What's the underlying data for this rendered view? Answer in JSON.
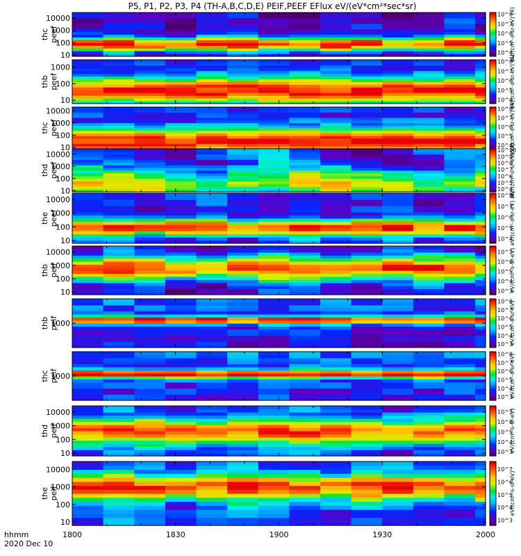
{
  "chart_data": {
    "type": "heatmap",
    "title": "P5, P1, P2, P3, P4 (TH-A,B,C,D,E) PEIF,PEEF EFlux eV/(eV*cm²*sec*sr)",
    "x_axis": {
      "label": "hhmm",
      "sublabel": "2020 Dec 10",
      "ticks": [
        "1800",
        "1830",
        "1900",
        "1930",
        "2000"
      ],
      "tick_values_min": [
        0,
        30,
        60,
        90,
        120
      ],
      "range_min": [
        0,
        120
      ]
    },
    "panels": [
      {
        "ylabel": [
          "thc",
          "peef"
        ],
        "yticks": [
          "10",
          "100",
          "1000",
          "10000"
        ],
        "ytick_exp": [
          1,
          2,
          3,
          4
        ],
        "yrange_exp": [
          0.9,
          4.45
        ],
        "cbar_ticks": [
          "10^4",
          "10^5",
          "10^6",
          "10^7",
          "10^8"
        ],
        "cbar_exp_range": [
          3.6,
          8.2
        ],
        "cbar_label": "eV/(cm²-s-sr-eV) (4)"
      },
      {
        "ylabel": [
          "thb",
          "peef"
        ],
        "yticks": [
          "10",
          "100",
          "1000"
        ],
        "ytick_exp": [
          1,
          2,
          3
        ],
        "yrange_exp": [
          0.8,
          3.45
        ],
        "cbar_ticks": [
          "10^4",
          "10^5",
          "10^6",
          "10^7",
          "10^8"
        ],
        "cbar_exp_range": [
          3.6,
          8.2
        ],
        "cbar_label": "eV/(cm²-s-sr-eV) (4)"
      },
      {
        "ylabel": [
          "thc",
          "peef"
        ],
        "yticks": [
          "10",
          "100",
          "1000",
          "10000"
        ],
        "ytick_exp": [
          1,
          2,
          3,
          4
        ],
        "yrange_exp": [
          0.9,
          4.3
        ],
        "cbar_ticks": [
          "10^4",
          "10^5",
          "10^6",
          "10^7",
          "10^8"
        ],
        "cbar_exp_range": [
          3.6,
          8.2
        ],
        "cbar_label": "eV/(cm²-s-sr-eV) (4)"
      },
      {
        "ylabel": [
          "thd",
          "peef"
        ],
        "yticks": [
          "10",
          "100",
          "1000",
          "10000"
        ],
        "ytick_exp": [
          1,
          2,
          3,
          4
        ],
        "yrange_exp": [
          0.9,
          4.45
        ],
        "cbar_ticks": [
          "10^4",
          "10^5",
          "10^6",
          "10^7",
          "10^8",
          "10^9",
          "10^10"
        ],
        "cbar_exp_range": [
          3.6,
          10.2
        ],
        "cbar_label": "eV/(cm²-s-sr-eV) (4)"
      },
      {
        "ylabel": [
          "the",
          "peef"
        ],
        "yticks": [
          "10",
          "100",
          "1000",
          "10000"
        ],
        "ytick_exp": [
          1,
          2,
          3,
          4
        ],
        "yrange_exp": [
          0.8,
          4.45
        ],
        "cbar_ticks": [
          "10^4",
          "10^5",
          "10^6",
          "10^7",
          "10^8"
        ],
        "cbar_exp_range": [
          3.6,
          8.2
        ],
        "cbar_label": "eV/(cm²-s-sr-eV) (4)"
      },
      {
        "ylabel": [
          "thb",
          "peif"
        ],
        "yticks": [
          "10",
          "100",
          "1000",
          "10000"
        ],
        "ytick_exp": [
          1,
          2,
          3,
          4
        ],
        "yrange_exp": [
          0.8,
          4.45
        ],
        "cbar_ticks": [
          "10^3",
          "10^4",
          "10^5",
          "10^6",
          "10^7"
        ],
        "cbar_exp_range": [
          2.6,
          7.6
        ],
        "cbar_label": "eV/(cm²-s-sr-eV)"
      },
      {
        "ylabel": [
          "thb",
          "peif"
        ],
        "yticks": [
          "1000"
        ],
        "ytick_exp": [
          3
        ],
        "yrange_exp": [
          1.6,
          4.4
        ],
        "cbar_ticks": [
          "10^3",
          "10^4",
          "10^5",
          "10^6",
          "10^7",
          "10^8"
        ],
        "cbar_exp_range": [
          2.6,
          8.3
        ],
        "cbar_label": "eV/(cm²-s-sr-eV)"
      },
      {
        "ylabel": [
          "thc",
          "peif"
        ],
        "yticks": [
          "1000"
        ],
        "ytick_exp": [
          3
        ],
        "yrange_exp": [
          1.6,
          4.4
        ],
        "cbar_ticks": [
          "10^3",
          "10^4",
          "10^5",
          "10^6",
          "10^7",
          "10^8"
        ],
        "cbar_exp_range": [
          2.6,
          8.3
        ],
        "cbar_label": "eV/(cm²-s-sr-eV)"
      },
      {
        "ylabel": [
          "thd",
          "peif"
        ],
        "yticks": [
          "10",
          "100",
          "1000",
          "10000"
        ],
        "ytick_exp": [
          1,
          2,
          3,
          4
        ],
        "yrange_exp": [
          0.8,
          4.45
        ],
        "cbar_ticks": [
          "10^3",
          "10^4",
          "10^5",
          "10^6",
          "10^7"
        ],
        "cbar_exp_range": [
          2.6,
          7.6
        ],
        "cbar_label": "eV/(cm²-s-sr-eV)"
      },
      {
        "ylabel": [
          "the",
          "peif"
        ],
        "yticks": [
          "10",
          "100",
          "1000",
          "10000"
        ],
        "ytick_exp": [
          1,
          2,
          3,
          4
        ],
        "yrange_exp": [
          0.8,
          4.45
        ],
        "cbar_ticks": [
          "10^3",
          "10^4",
          "10^5",
          "10^6",
          "10^7"
        ],
        "cbar_exp_range": [
          2.6,
          7.6
        ],
        "cbar_label": "eV/(cm²-s-sr-eV)"
      }
    ],
    "colormap": "rainbow (purple-blue-cyan-green-yellow-orange-red)",
    "legend": "colorbar at right of each panel"
  }
}
